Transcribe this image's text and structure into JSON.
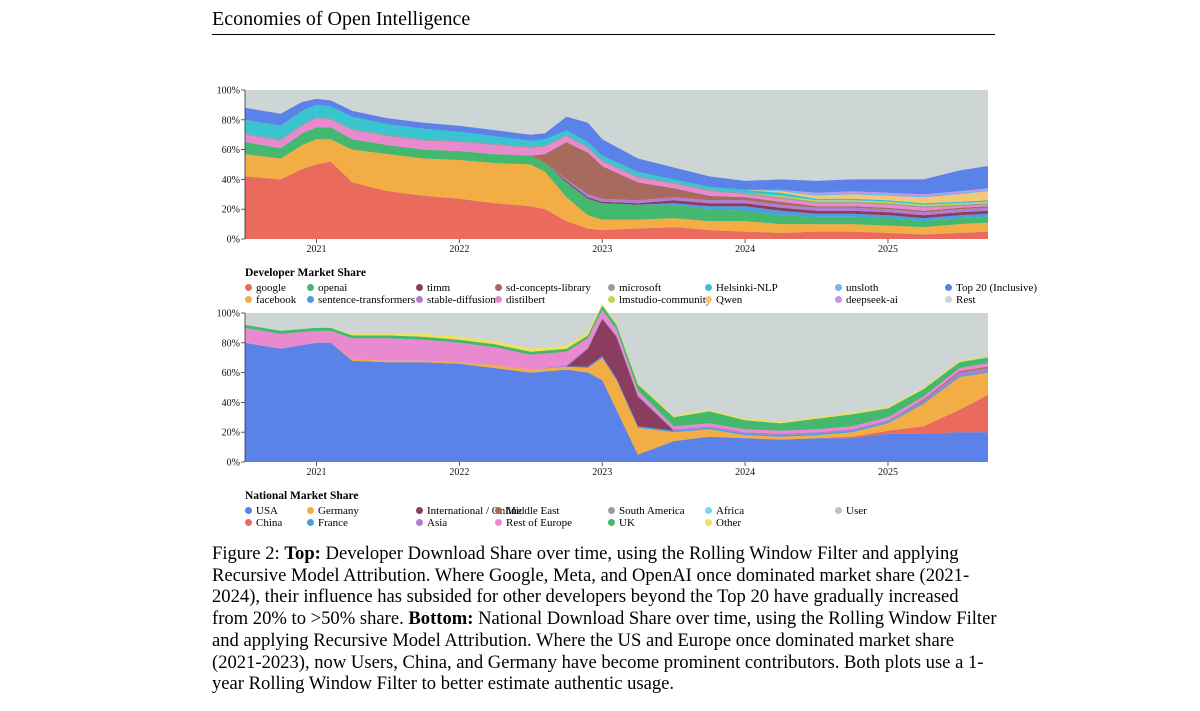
{
  "header": {
    "title": "Economies of Open Intelligence"
  },
  "caption": {
    "figure_label": "Figure 2:",
    "top_label": "Top:",
    "top_text": "Developer Download Share over time, using the Rolling Window Filter and applying Recursive Model Attribution. Where Google, Meta, and OpenAI once dominated market share (2021-2024), their influence has subsided for other developers beyond the Top 20 have gradually increased from 20% to >50% share.",
    "bottom_label": "Bottom:",
    "bottom_text": "National Download Share over time, using the Rolling Window Filter and applying Recursive Model Attribution. Where the US and Europe once dominated market share (2021-2023), now Users, China, and Germany have become prominent contributors. Both plots use a 1-year Rolling Window Filter to better estimate authentic usage."
  },
  "chart_data": [
    {
      "type": "area",
      "title": "Developer Market Share",
      "xlabel": "",
      "ylabel": "",
      "x_ticks": [
        "2021",
        "2022",
        "2023",
        "2024",
        "2025"
      ],
      "y_ticks": [
        "0%",
        "20%",
        "40%",
        "60%",
        "80%",
        "100%"
      ],
      "ylim": [
        0,
        100
      ],
      "x": [
        2020.5,
        2020.75,
        2020.9,
        2021.0,
        2021.1,
        2021.25,
        2021.5,
        2021.75,
        2022.0,
        2022.25,
        2022.5,
        2022.6,
        2022.75,
        2022.9,
        2023.0,
        2023.25,
        2023.5,
        2023.75,
        2024.0,
        2024.25,
        2024.5,
        2024.75,
        2025.0,
        2025.25,
        2025.5,
        2025.7
      ],
      "series": [
        {
          "name": "google",
          "color": "#ea6a5e",
          "values": [
            42,
            40,
            47,
            50,
            52,
            38,
            32,
            29,
            27,
            24,
            22,
            20,
            12,
            7,
            6,
            7,
            8,
            6,
            5,
            4,
            5,
            5,
            4,
            3,
            4,
            5
          ]
        },
        {
          "name": "facebook",
          "color": "#f2ad45",
          "values": [
            15,
            14,
            16,
            17,
            15,
            22,
            25,
            25,
            26,
            27,
            28,
            25,
            16,
            9,
            7,
            6,
            6,
            6,
            7,
            6,
            5,
            5,
            5,
            5,
            6,
            6
          ]
        },
        {
          "name": "openai",
          "color": "#43b86e",
          "values": [
            8,
            7,
            8,
            8,
            8,
            7,
            6,
            6,
            6,
            6,
            6,
            6,
            10,
            11,
            11,
            10,
            9,
            8,
            7,
            6,
            5,
            5,
            5,
            4,
            4,
            4
          ]
        },
        {
          "name": "sentence-transformers",
          "color": "#4b9fde",
          "values": [
            0,
            0,
            0,
            0,
            0,
            0,
            0,
            0,
            0,
            0,
            0,
            0,
            0,
            0,
            0,
            0,
            1,
            2,
            3,
            3,
            2,
            2,
            2,
            2,
            2,
            2
          ]
        },
        {
          "name": "timm",
          "color": "#8a3d5e",
          "values": [
            0,
            0,
            0,
            0,
            0,
            0,
            0,
            0,
            0,
            0,
            0,
            0,
            1,
            1,
            1,
            1,
            2,
            2,
            2,
            2,
            2,
            2,
            2,
            2,
            2,
            2
          ]
        },
        {
          "name": "stable-diffusion",
          "color": "#b07cd6",
          "values": [
            0,
            0,
            0,
            0,
            0,
            0,
            0,
            0,
            0,
            0,
            0,
            0,
            1,
            2,
            2,
            2,
            2,
            2,
            2,
            2,
            2,
            2,
            2,
            2,
            2,
            2
          ]
        },
        {
          "name": "sd-concepts-library",
          "color": "#a86a5c",
          "values": [
            0,
            0,
            0,
            0,
            0,
            0,
            0,
            0,
            0,
            0,
            0,
            6,
            25,
            28,
            22,
            12,
            6,
            3,
            2,
            2,
            1,
            1,
            1,
            1,
            1,
            1
          ]
        },
        {
          "name": "distilbert",
          "color": "#e98ad1",
          "values": [
            5,
            5,
            5,
            6,
            5,
            6,
            6,
            6,
            6,
            6,
            5,
            5,
            4,
            3,
            3,
            3,
            3,
            3,
            2,
            2,
            2,
            2,
            2,
            2,
            1,
            1
          ]
        },
        {
          "name": "microsoft",
          "color": "#9b9b9b",
          "values": [
            1,
            1,
            1,
            1,
            1,
            1,
            1,
            1,
            1,
            1,
            1,
            1,
            1,
            1,
            1,
            1,
            1,
            1,
            1,
            1,
            1,
            1,
            1,
            1,
            1,
            1
          ]
        },
        {
          "name": "lmstudio-community",
          "color": "#c9d452",
          "values": [
            0,
            0,
            0,
            0,
            0,
            0,
            0,
            0,
            0,
            0,
            0,
            0,
            0,
            0,
            0,
            0,
            0,
            0,
            0,
            1,
            1,
            1,
            1,
            1,
            1,
            1
          ]
        },
        {
          "name": "Helsinki-NLP",
          "color": "#38c5cf",
          "values": [
            9,
            9,
            9,
            8,
            8,
            8,
            7,
            7,
            6,
            5,
            4,
            4,
            3,
            3,
            3,
            3,
            2,
            2,
            2,
            2,
            1,
            1,
            1,
            1,
            1,
            1
          ]
        },
        {
          "name": "Qwen",
          "color": "#f4c77a",
          "values": [
            0,
            0,
            0,
            0,
            0,
            0,
            0,
            0,
            0,
            0,
            0,
            0,
            0,
            0,
            0,
            0,
            0,
            0,
            0,
            1,
            2,
            3,
            3,
            4,
            5,
            6
          ]
        },
        {
          "name": "unsloth",
          "color": "#74b7e6",
          "values": [
            0,
            0,
            0,
            0,
            0,
            0,
            0,
            0,
            0,
            0,
            0,
            0,
            0,
            0,
            0,
            0,
            0,
            0,
            0,
            1,
            1,
            1,
            1,
            1,
            1,
            1
          ]
        },
        {
          "name": "deepseek-ai",
          "color": "#c596e6",
          "values": [
            0,
            0,
            0,
            0,
            0,
            0,
            0,
            0,
            0,
            0,
            0,
            0,
            0,
            0,
            0,
            0,
            0,
            0,
            0,
            0,
            1,
            1,
            1,
            1,
            1,
            1
          ]
        },
        {
          "name": "Top 20 (Inclusive)",
          "color": "#5b82e8",
          "values": [
            8,
            8,
            6,
            4,
            4,
            4,
            4,
            4,
            4,
            4,
            4,
            4,
            9,
            13,
            11,
            9,
            8,
            7,
            6,
            7,
            8,
            8,
            9,
            10,
            14,
            15
          ]
        }
      ],
      "rest": {
        "name": "Rest",
        "color": "#cdd5d5"
      }
    },
    {
      "type": "area",
      "title": "National Market Share",
      "xlabel": "",
      "ylabel": "",
      "x_ticks": [
        "2021",
        "2022",
        "2023",
        "2024",
        "2025"
      ],
      "y_ticks": [
        "0%",
        "20%",
        "40%",
        "60%",
        "80%",
        "100%"
      ],
      "ylim": [
        0,
        100
      ],
      "x": [
        2020.5,
        2020.75,
        2021.0,
        2021.1,
        2021.25,
        2021.5,
        2021.75,
        2022.0,
        2022.25,
        2022.5,
        2022.75,
        2022.9,
        2023.0,
        2023.1,
        2023.25,
        2023.5,
        2023.75,
        2024.0,
        2024.25,
        2024.5,
        2024.75,
        2025.0,
        2025.25,
        2025.5,
        2025.7
      ],
      "series": [
        {
          "name": "USA",
          "color": "#5b82e8",
          "values": [
            80,
            76,
            80,
            80,
            68,
            67,
            67,
            66,
            63,
            60,
            62,
            60,
            55,
            35,
            5,
            14,
            17,
            16,
            15,
            16,
            16,
            19,
            19,
            20,
            20
          ]
        },
        {
          "name": "China",
          "color": "#ea6a5e",
          "values": [
            0,
            0,
            0,
            0,
            0,
            0,
            0,
            0,
            0,
            0,
            0,
            0,
            0,
            0,
            0,
            0,
            0,
            0,
            0,
            0,
            1,
            2,
            5,
            15,
            25
          ]
        },
        {
          "name": "Germany",
          "color": "#f2ad45",
          "values": [
            0,
            0,
            0,
            0,
            1,
            1,
            1,
            1,
            2,
            2,
            2,
            3,
            15,
            20,
            18,
            6,
            5,
            2,
            2,
            2,
            3,
            5,
            15,
            22,
            15
          ]
        },
        {
          "name": "France",
          "color": "#4b9fde",
          "values": [
            0,
            0,
            0,
            0,
            0,
            0,
            0,
            0,
            0,
            0,
            0,
            1,
            1,
            1,
            1,
            1,
            1,
            1,
            1,
            1,
            1,
            1,
            1,
            1,
            1
          ]
        },
        {
          "name": "International / Online",
          "color": "#8a3d5e",
          "values": [
            0,
            0,
            0,
            0,
            0,
            0,
            0,
            0,
            0,
            0,
            0,
            12,
            25,
            28,
            20,
            0,
            0,
            0,
            0,
            0,
            0,
            0,
            0,
            0,
            0
          ]
        },
        {
          "name": "Asia",
          "color": "#b07cd6",
          "values": [
            0,
            0,
            0,
            0,
            0,
            0,
            0,
            0,
            0,
            0,
            1,
            1,
            1,
            1,
            1,
            1,
            1,
            1,
            1,
            1,
            1,
            1,
            1,
            2,
            2
          ]
        },
        {
          "name": "Middle East",
          "color": "#a86a5c",
          "values": [
            0,
            0,
            0,
            0,
            0,
            0,
            0,
            0,
            0,
            0,
            0,
            0,
            0,
            0,
            0,
            0,
            0,
            0,
            0,
            0,
            0,
            0,
            1,
            1,
            1
          ]
        },
        {
          "name": "Rest of Europe",
          "color": "#e98ad1",
          "values": [
            10,
            10,
            8,
            8,
            14,
            15,
            14,
            13,
            12,
            10,
            9,
            6,
            5,
            4,
            3,
            2,
            2,
            2,
            2,
            2,
            2,
            2,
            2,
            2,
            2
          ]
        },
        {
          "name": "South America",
          "color": "#9b9b9b",
          "values": [
            0,
            0,
            0,
            0,
            0,
            0,
            0,
            0,
            0,
            0,
            0,
            0,
            0,
            0,
            0,
            0,
            0,
            0,
            0,
            0,
            0,
            0,
            0,
            0,
            1
          ]
        },
        {
          "name": "UK",
          "color": "#43b86e",
          "values": [
            2,
            2,
            2,
            2,
            2,
            2,
            2,
            2,
            2,
            2,
            2,
            2,
            3,
            3,
            4,
            6,
            8,
            6,
            5,
            7,
            8,
            6,
            5,
            4,
            3
          ]
        },
        {
          "name": "Africa",
          "color": "#74d8f0",
          "values": [
            0,
            0,
            0,
            0,
            0,
            0,
            0,
            0,
            0,
            0,
            0,
            0,
            0,
            0,
            0,
            0,
            0,
            0,
            0,
            0,
            0,
            0,
            0,
            0,
            1
          ]
        },
        {
          "name": "Other",
          "color": "#f0e35a",
          "values": [
            0,
            0,
            0,
            0,
            1,
            1,
            2,
            2,
            2,
            2,
            2,
            2,
            1,
            1,
            1,
            1,
            1,
            1,
            1,
            1,
            1,
            1,
            1,
            1,
            1
          ]
        },
        {
          "name": "User",
          "color": "#b9c4c4",
          "values": [
            0,
            0,
            0,
            0,
            0,
            0,
            0,
            0,
            0,
            0,
            0,
            0,
            0,
            0,
            0,
            0,
            0,
            0,
            0,
            0,
            0,
            0,
            0,
            0,
            0
          ]
        }
      ],
      "rest": {
        "name": "Rest",
        "color": "#cdd5d5"
      }
    }
  ]
}
